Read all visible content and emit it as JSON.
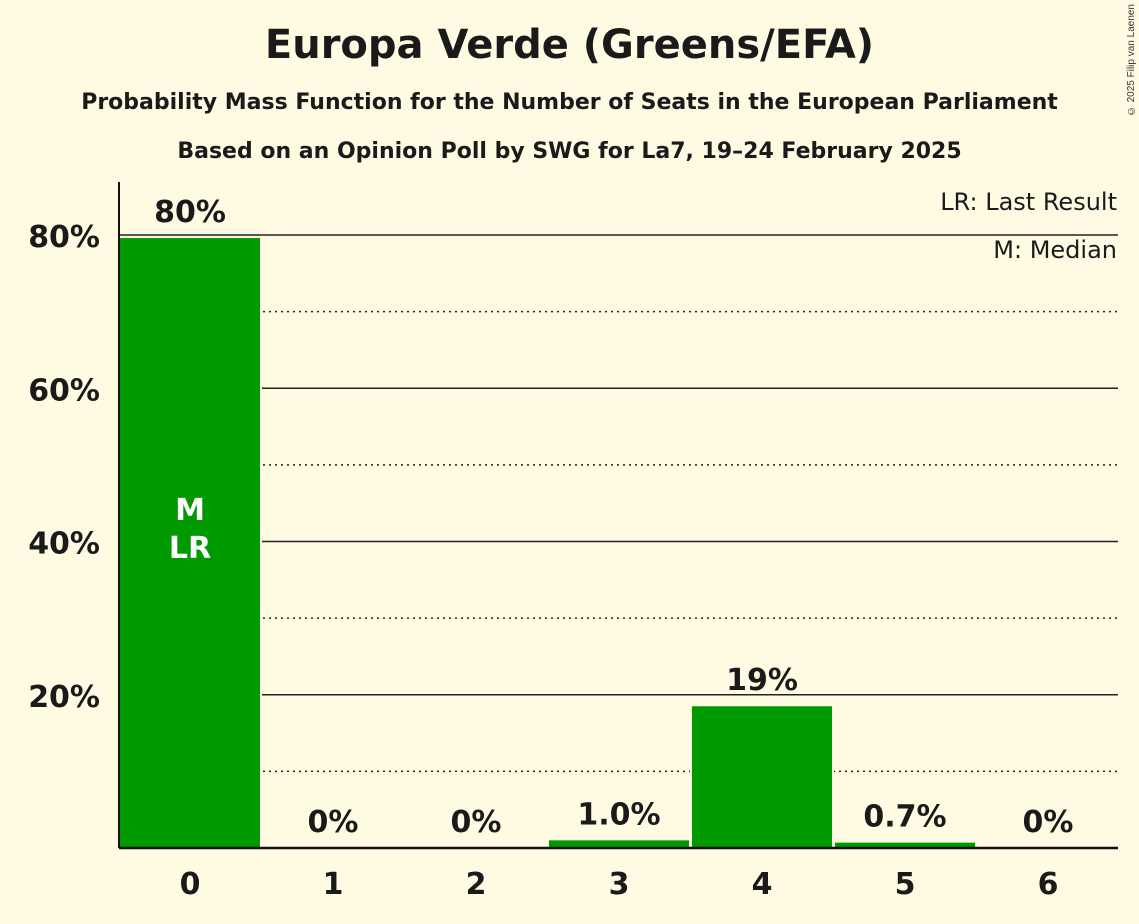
{
  "chart_data": {
    "type": "bar",
    "title": "Europa Verde (Greens/EFA)",
    "subtitle": "Probability Mass Function for the Number of Seats in the European Parliament",
    "subtitle2": "Based on an Opinion Poll by SWG for La7, 19–24 February 2025",
    "categories": [
      "0",
      "1",
      "2",
      "3",
      "4",
      "5",
      "6"
    ],
    "values": [
      79.6,
      0,
      0,
      1.0,
      18.5,
      0.7,
      0
    ],
    "data_labels": [
      "80%",
      "0%",
      "0%",
      "1.0%",
      "19%",
      "0.7%",
      "0%"
    ],
    "ylim": [
      0,
      87
    ],
    "yticks": [
      20,
      40,
      60,
      80
    ],
    "ytick_labels": [
      "20%",
      "40%",
      "60%",
      "80%"
    ],
    "minor_gridlines": [
      10,
      30,
      50,
      70
    ],
    "bar_color": "#009900",
    "annotations": {
      "median_index": 0,
      "last_result_index": 0,
      "median_mark": "M",
      "last_result_mark": "LR"
    },
    "legend": [
      "LR: Last Result",
      "M: Median"
    ],
    "legend_position": "top-right",
    "copyright": "© 2025 Filip van Laenen"
  }
}
